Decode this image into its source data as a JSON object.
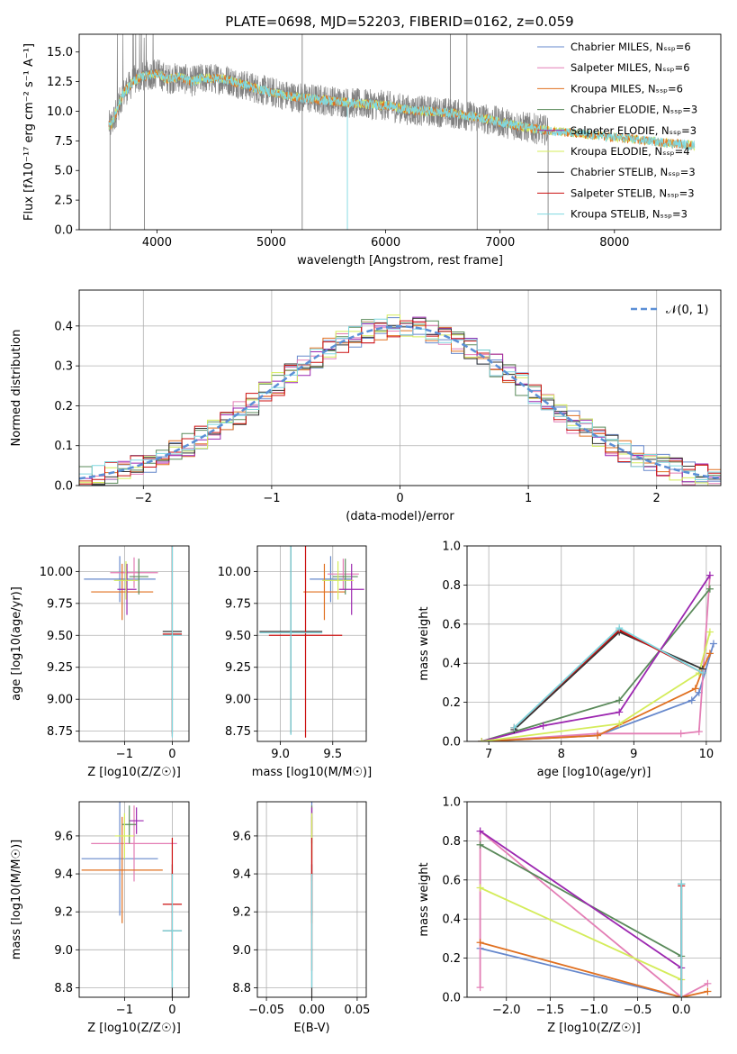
{
  "title": "PLATE=0698, MJD=52203, FIBERID=0162, z=0.059",
  "colors": {
    "Chabrier MILES": "#6688cc",
    "Salpeter MILES": "#e37eb5",
    "Kroupa MILES": "#e07020",
    "Chabrier ELODIE": "#5a8a5a",
    "Salpeter ELODIE": "#9c27b0",
    "Kroupa ELODIE": "#d4ec5a",
    "Chabrier STELIB": "#333333",
    "Salpeter STELIB": "#cc1111",
    "Kroupa STELIB": "#7fd8e0",
    "data": "#808080",
    "normal": "#5b8fd6"
  },
  "chart_data": [
    {
      "id": "spectrum",
      "type": "line",
      "xlabel": "wavelength [Angstrom, rest frame]",
      "ylabel": "Flux [fλ10⁻¹⁷ erg cm⁻² s⁻¹ A⁻¹]",
      "xlim": [
        3320,
        8930
      ],
      "ylim": [
        0,
        16.5
      ],
      "xticks": [
        4000,
        5000,
        6000,
        7000,
        8000
      ],
      "yticks": [
        0.0,
        2.5,
        5.0,
        7.5,
        10.0,
        12.5,
        15.0
      ],
      "continuum": {
        "x": [
          3600,
          3700,
          3800,
          3900,
          4000,
          4100,
          4200,
          4300,
          4400,
          4600,
          4800,
          5000,
          5200,
          5400,
          5600,
          5800,
          6000,
          6200,
          6400,
          6600,
          6800,
          7000,
          7200,
          7400,
          7600,
          7800,
          8000,
          8200,
          8400,
          8600,
          8700
        ],
        "y": [
          8.8,
          11.4,
          12.6,
          13.0,
          13.2,
          12.7,
          12.9,
          12.5,
          12.8,
          12.7,
          12.1,
          11.6,
          11.2,
          11.0,
          10.8,
          10.6,
          10.5,
          10.1,
          10.0,
          9.8,
          9.5,
          9.1,
          8.7,
          8.4,
          8.2,
          8.0,
          7.8,
          7.6,
          7.4,
          7.2,
          7.1
        ]
      },
      "data_range": [
        3580,
        7420
      ],
      "model_range": [
        3580,
        8700
      ],
      "legend": [
        "Chabrier MILES, N_SSP=6",
        "Salpeter MILES, N_SSP=6",
        "Kroupa MILES, N_SSP=6",
        "Chabrier ELODIE, N_SSP=3",
        "Salpeter ELODIE, N_SSP=3",
        "Kroupa ELODIE, N_SSP=4",
        "Chabrier STELIB, N_SSP=3",
        "Salpeter STELIB, N_SSP=3",
        "Kroupa STELIB, N_SSP=3"
      ],
      "legend_loc": "upper right"
    },
    {
      "id": "residuals",
      "type": "line",
      "xlabel": "(data-model)/error",
      "ylabel": "Normed distribution",
      "xlim": [
        -2.5,
        2.5
      ],
      "ylim": [
        0,
        0.49
      ],
      "xticks": [
        -2,
        -1,
        0,
        1,
        2
      ],
      "yticks": [
        0.0,
        0.1,
        0.2,
        0.3,
        0.4
      ],
      "legend": [
        "𝒩(0, 1)"
      ],
      "legend_loc": "upper right",
      "grid": true
    },
    {
      "id": "age_vs_Z",
      "type": "scatter",
      "xlabel": "Z [log10(Z/Z☉)]",
      "ylabel": "age  [log10(age/yr)]",
      "xlim": [
        -1.95,
        0.35
      ],
      "ylim": [
        8.67,
        10.2
      ],
      "xticks": [
        -1,
        0
      ],
      "yticks": [
        8.75,
        9.0,
        9.25,
        9.5,
        9.75,
        10.0
      ],
      "grid": true,
      "points": [
        {
          "model": "Chabrier MILES",
          "x": -1.1,
          "y": 9.94,
          "xerr": 0.75,
          "yerr": 0.18
        },
        {
          "model": "Salpeter MILES",
          "x": -0.8,
          "y": 9.99,
          "xerr": 0.5,
          "yerr": 0.12
        },
        {
          "model": "Kroupa MILES",
          "x": -1.05,
          "y": 9.84,
          "xerr": 0.65,
          "yerr": 0.22
        },
        {
          "model": "Chabrier ELODIE",
          "x": -0.7,
          "y": 9.96,
          "xerr": 0.2,
          "yerr": 0.14
        },
        {
          "model": "Salpeter ELODIE",
          "x": -0.95,
          "y": 9.86,
          "xerr": 0.2,
          "yerr": 0.2
        },
        {
          "model": "Kroupa ELODIE",
          "x": -0.97,
          "y": 9.93,
          "xerr": 0.25,
          "yerr": 0.15
        },
        {
          "model": "Chabrier STELIB",
          "x": 0.0,
          "y": 9.53,
          "xerr": 0.2,
          "yerr": 0.8
        },
        {
          "model": "Salpeter STELIB",
          "x": 0.0,
          "y": 9.51,
          "xerr": 0.2,
          "yerr": 0.8
        },
        {
          "model": "Kroupa STELIB",
          "x": 0.0,
          "y": 9.5,
          "xerr": 0.2,
          "yerr": 0.8
        }
      ]
    },
    {
      "id": "age_vs_mass",
      "type": "scatter",
      "xlabel": "mass [log10(M/M☉)]",
      "ylabel": "",
      "xlim": [
        8.78,
        9.82
      ],
      "ylim": [
        8.67,
        10.2
      ],
      "xticks": [
        9.0,
        9.5
      ],
      "yticks": [
        8.75,
        9.0,
        9.25,
        9.5,
        9.75,
        10.0
      ],
      "grid": true,
      "points": [
        {
          "model": "Chabrier MILES",
          "x": 9.48,
          "y": 9.94,
          "xerr": 0.2,
          "yerr": 0.18
        },
        {
          "model": "Salpeter MILES",
          "x": 9.6,
          "y": 9.98,
          "xerr": 0.15,
          "yerr": 0.12
        },
        {
          "model": "Kroupa MILES",
          "x": 9.42,
          "y": 9.84,
          "xerr": 0.2,
          "yerr": 0.22
        },
        {
          "model": "Chabrier ELODIE",
          "x": 9.62,
          "y": 9.96,
          "xerr": 0.12,
          "yerr": 0.14
        },
        {
          "model": "Salpeter ELODIE",
          "x": 9.68,
          "y": 9.86,
          "xerr": 0.12,
          "yerr": 0.2
        },
        {
          "model": "Kroupa ELODIE",
          "x": 9.55,
          "y": 9.93,
          "xerr": 0.15,
          "yerr": 0.15
        },
        {
          "model": "Chabrier STELIB",
          "x": 9.1,
          "y": 9.53,
          "xerr": 0.3,
          "yerr": 0.8
        },
        {
          "model": "Salpeter STELIB",
          "x": 9.24,
          "y": 9.5,
          "xerr": 0.35,
          "yerr": 0.8
        },
        {
          "model": "Kroupa STELIB",
          "x": 9.1,
          "y": 9.52,
          "xerr": 0.3,
          "yerr": 0.8
        }
      ]
    },
    {
      "id": "weight_vs_age",
      "type": "line",
      "xlabel": "age  [log10(age/yr)]",
      "ylabel": "mass weight",
      "xlim": [
        6.7,
        10.2
      ],
      "ylim": [
        0,
        1.0
      ],
      "xticks": [
        7,
        8,
        9,
        10
      ],
      "yticks": [
        0.0,
        0.2,
        0.4,
        0.6,
        0.8,
        1.0
      ],
      "grid": true,
      "series": [
        {
          "model": "Chabrier MILES",
          "x": [
            6.9,
            8.5,
            9.8,
            9.9,
            10.1
          ],
          "y": [
            0.0,
            0.03,
            0.21,
            0.25,
            0.5
          ]
        },
        {
          "model": "Salpeter MILES",
          "x": [
            6.9,
            8.5,
            9.65,
            9.9,
            10.05
          ],
          "y": [
            0.0,
            0.04,
            0.04,
            0.05,
            0.85
          ]
        },
        {
          "model": "Kroupa MILES",
          "x": [
            6.9,
            8.5,
            9.85,
            9.95,
            10.05
          ],
          "y": [
            0.0,
            0.03,
            0.27,
            0.37,
            0.45
          ]
        },
        {
          "model": "Chabrier ELODIE",
          "x": [
            6.9,
            8.8,
            10.05
          ],
          "y": [
            0.0,
            0.21,
            0.78
          ]
        },
        {
          "model": "Salpeter ELODIE",
          "x": [
            6.9,
            7.75,
            8.8,
            10.05
          ],
          "y": [
            0.0,
            0.08,
            0.15,
            0.85
          ]
        },
        {
          "model": "Kroupa ELODIE",
          "x": [
            6.9,
            8.8,
            9.9,
            10.05
          ],
          "y": [
            0.0,
            0.09,
            0.35,
            0.56
          ]
        },
        {
          "model": "Chabrier STELIB",
          "x": [
            7.35,
            8.8,
            9.95
          ],
          "y": [
            0.06,
            0.56,
            0.37
          ]
        },
        {
          "model": "Salpeter STELIB",
          "x": [
            7.35,
            8.8,
            9.95
          ],
          "y": [
            0.07,
            0.57,
            0.35
          ]
        },
        {
          "model": "Kroupa STELIB",
          "x": [
            7.35,
            8.8,
            9.95
          ],
          "y": [
            0.07,
            0.58,
            0.35
          ]
        }
      ]
    },
    {
      "id": "mass_vs_Z",
      "type": "scatter",
      "xlabel": "Z [log10(Z/Z☉)]",
      "ylabel": "mass [log10(M/M☉)]",
      "xlim": [
        -1.95,
        0.35
      ],
      "ylim": [
        8.75,
        9.78
      ],
      "xticks": [
        -1,
        0
      ],
      "yticks": [
        8.8,
        9.0,
        9.2,
        9.4,
        9.6
      ],
      "grid": true,
      "points": [
        {
          "model": "Chabrier MILES",
          "x": -1.1,
          "y": 9.48,
          "xerr": 0.8,
          "yerr": 0.3
        },
        {
          "model": "Salpeter MILES",
          "x": -0.8,
          "y": 9.56,
          "xerr": 0.9,
          "yerr": 0.2
        },
        {
          "model": "Kroupa MILES",
          "x": -1.05,
          "y": 9.42,
          "xerr": 0.85,
          "yerr": 0.28
        },
        {
          "model": "Chabrier ELODIE",
          "x": -0.9,
          "y": 9.66,
          "xerr": 0.15,
          "yerr": 0.1
        },
        {
          "model": "Salpeter ELODIE",
          "x": -0.75,
          "y": 9.68,
          "xerr": 0.15,
          "yerr": 0.07
        },
        {
          "model": "Kroupa ELODIE",
          "x": -1.0,
          "y": 9.6,
          "xerr": 0.2,
          "yerr": 0.12
        },
        {
          "model": "Chabrier STELIB",
          "x": 0.0,
          "y": 9.1,
          "xerr": 0.2,
          "yerr": 0.35
        },
        {
          "model": "Salpeter STELIB",
          "x": 0.0,
          "y": 9.24,
          "xerr": 0.2,
          "yerr": 0.35
        },
        {
          "model": "Kroupa STELIB",
          "x": 0.0,
          "y": 9.1,
          "xerr": 0.2,
          "yerr": 0.3
        }
      ]
    },
    {
      "id": "mass_vs_ebv",
      "type": "scatter",
      "xlabel": "E(B-V)",
      "ylabel": "",
      "xlim": [
        -0.06,
        0.06
      ],
      "ylim": [
        8.75,
        9.78
      ],
      "xticks": [
        -0.05,
        0.0,
        0.05
      ],
      "yticks": [
        8.8,
        9.0,
        9.2,
        9.4,
        9.6
      ],
      "grid": true,
      "points": [
        {
          "model": "Chabrier MILES",
          "x": 0.0,
          "y": 9.48,
          "xerr": 0,
          "yerr": 0.3
        },
        {
          "model": "Salpeter MILES",
          "x": 0.0,
          "y": 9.56,
          "xerr": 0,
          "yerr": 0.2
        },
        {
          "model": "Kroupa MILES",
          "x": 0.0,
          "y": 9.42,
          "xerr": 0,
          "yerr": 0.28
        },
        {
          "model": "Chabrier ELODIE",
          "x": 0.0,
          "y": 9.66,
          "xerr": 0,
          "yerr": 0.1
        },
        {
          "model": "Salpeter ELODIE",
          "x": 0.0,
          "y": 9.68,
          "xerr": 0,
          "yerr": 0.07
        },
        {
          "model": "Kroupa ELODIE",
          "x": 0.0,
          "y": 9.6,
          "xerr": 0,
          "yerr": 0.12
        },
        {
          "model": "Chabrier STELIB",
          "x": 0.0,
          "y": 9.1,
          "xerr": 0,
          "yerr": 0.35
        },
        {
          "model": "Salpeter STELIB",
          "x": 0.0,
          "y": 9.24,
          "xerr": 0,
          "yerr": 0.35
        },
        {
          "model": "Kroupa STELIB",
          "x": 0.0,
          "y": 9.1,
          "xerr": 0,
          "yerr": 0.3
        }
      ]
    },
    {
      "id": "weight_vs_Z",
      "type": "line",
      "xlabel": "Z [log10(Z/Z☉)]",
      "ylabel": "mass weight",
      "xlim": [
        -2.45,
        0.45
      ],
      "ylim": [
        0,
        1.0
      ],
      "xticks": [
        -2.0,
        -1.5,
        -1.0,
        -0.5,
        0.0
      ],
      "yticks": [
        0.0,
        0.2,
        0.4,
        0.6,
        0.8,
        1.0
      ],
      "grid": true,
      "series": [
        {
          "model": "Chabrier MILES",
          "x": [
            -2.3,
            0.0
          ],
          "y": [
            0.25,
            0.0
          ]
        },
        {
          "model": "Salpeter MILES",
          "x": [
            -2.3,
            -2.3,
            0.0,
            0.0,
            0.3
          ],
          "y": [
            0.05,
            0.85,
            0.0,
            0.0,
            0.07
          ]
        },
        {
          "model": "Kroupa MILES",
          "x": [
            -2.3,
            0.0,
            0.3
          ],
          "y": [
            0.28,
            0.0,
            0.03
          ]
        },
        {
          "model": "Chabrier ELODIE",
          "x": [
            -2.3,
            0.0
          ],
          "y": [
            0.78,
            0.21
          ]
        },
        {
          "model": "Salpeter ELODIE",
          "x": [
            -2.3,
            0.0
          ],
          "y": [
            0.85,
            0.15
          ]
        },
        {
          "model": "Kroupa ELODIE",
          "x": [
            -2.3,
            0.0
          ],
          "y": [
            0.56,
            0.09
          ]
        },
        {
          "model": "Chabrier STELIB",
          "x": [
            0.0,
            0.0
          ],
          "y": [
            0.0,
            0.58
          ]
        },
        {
          "model": "Salpeter STELIB",
          "x": [
            0.0,
            0.0
          ],
          "y": [
            0.0,
            0.57
          ]
        },
        {
          "model": "Kroupa STELIB",
          "x": [
            0.0,
            0.0
          ],
          "y": [
            0.0,
            0.58
          ]
        }
      ]
    }
  ]
}
